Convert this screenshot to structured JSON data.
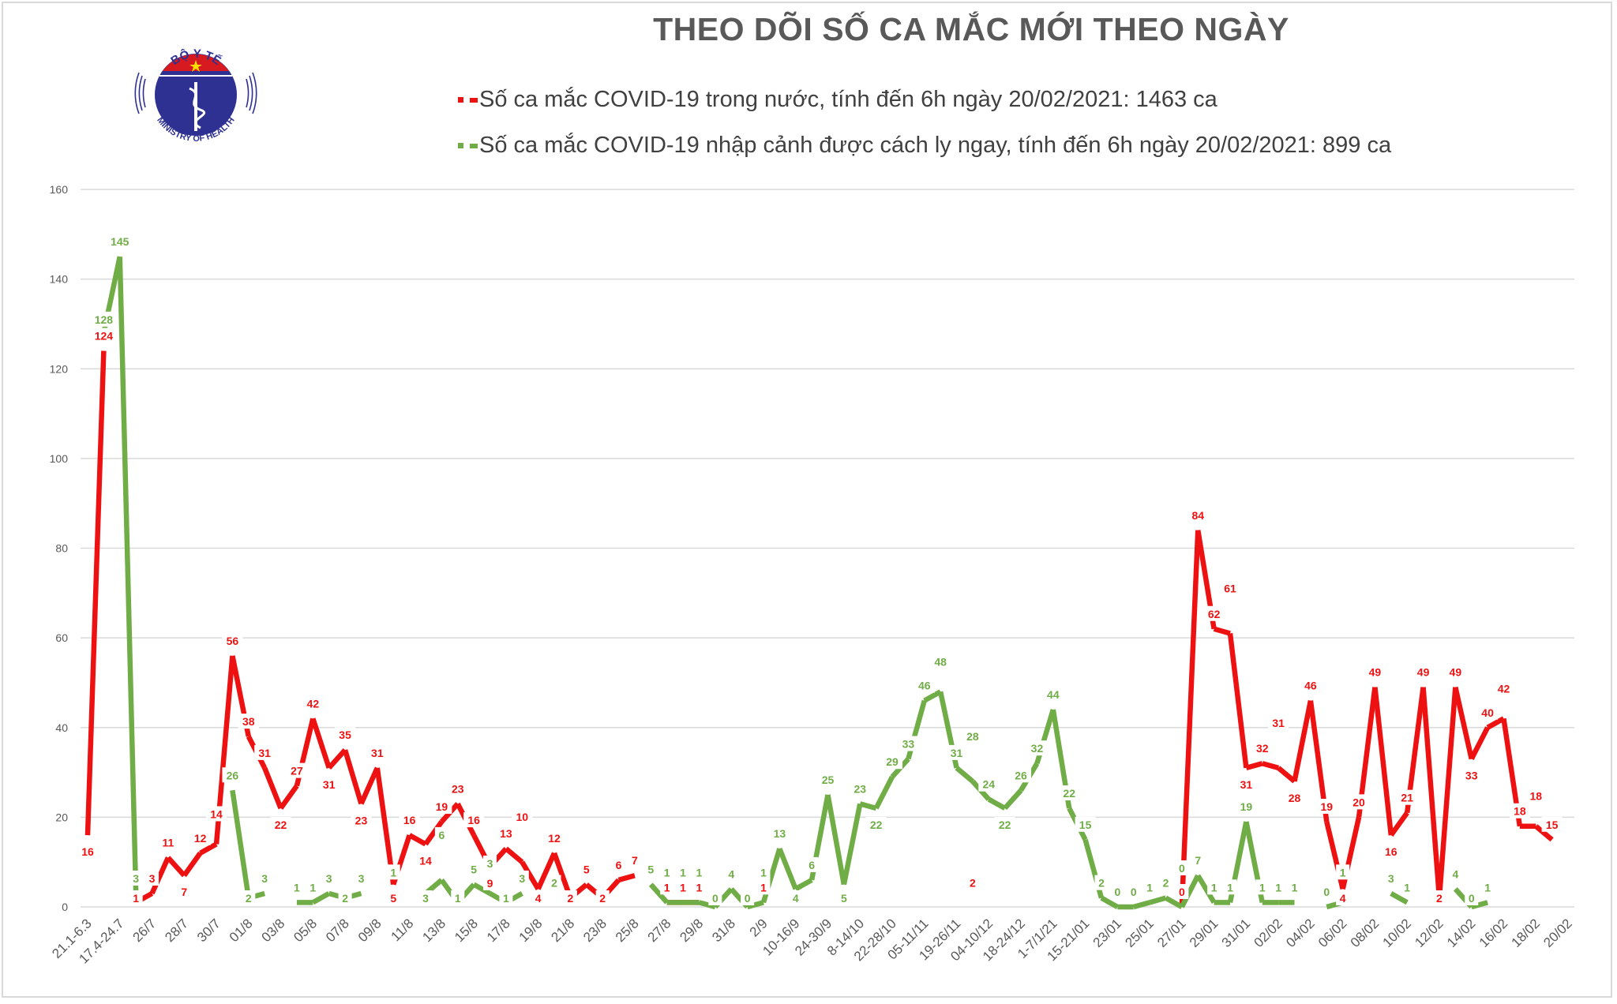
{
  "logo": {
    "top_text": "BỘ Y TẾ",
    "bottom_text": "MINISTRY OF HEALTH"
  },
  "colors": {
    "domestic": "#ee1111",
    "imported": "#70ad47",
    "grid": "#d9d9d9",
    "text": "#595959"
  },
  "chart_data": {
    "type": "line",
    "title": "THEO DÕI SỐ CA MẮC MỚI THEO NGÀY",
    "legend_position": "top",
    "grid": true,
    "ylim": [
      0,
      160
    ],
    "yticks": [
      0,
      20,
      40,
      60,
      80,
      100,
      120,
      140,
      160
    ],
    "categories": [
      "21.1-6.3",
      "",
      "17.4-24.7",
      "",
      "26/7",
      "",
      "28/7",
      "",
      "30/7",
      "",
      "01/8",
      "",
      "03/8",
      "",
      "05/8",
      "",
      "07/8",
      "",
      "09/8",
      "",
      "11/8",
      "",
      "13/8",
      "",
      "15/8",
      "",
      "17/8",
      "",
      "19/8",
      "",
      "21/8",
      "",
      "23/8",
      "",
      "25/8",
      "",
      "27/8",
      "",
      "29/8",
      "",
      "31/8",
      "",
      "2/9",
      "",
      "10-16/9",
      "",
      "24-30/9",
      "",
      "8-14/10",
      "",
      "22-28/10",
      "",
      "05-11/11",
      "",
      "19-26/11",
      "",
      "04-10/12",
      "",
      "18-24/12",
      "",
      "1-7/1/21",
      "",
      "15-21/01",
      "",
      "23/01",
      "",
      "25/01",
      "",
      "27/01",
      "",
      "29/01",
      "",
      "31/01",
      "",
      "02/02",
      "",
      "04/02",
      "",
      "06/02",
      "",
      "08/02",
      "",
      "10/02",
      "",
      "12/02",
      "",
      "14/02",
      "",
      "16/02",
      "",
      "18/02",
      "",
      "20/02"
    ],
    "series": [
      {
        "name": "Số ca mắc COVID-19 trong nước, tính đến 6h ngày 20/02/2021: 1463 ca",
        "color": "#ee1111",
        "values": [
          16,
          124,
          null,
          1,
          3,
          11,
          7,
          12,
          14,
          56,
          38,
          31,
          22,
          27,
          42,
          31,
          35,
          23,
          31,
          5,
          16,
          14,
          19,
          23,
          16,
          9,
          13,
          10,
          4,
          12,
          2,
          5,
          2,
          6,
          7,
          null,
          1,
          1,
          1,
          null,
          null,
          null,
          1,
          null,
          null,
          null,
          null,
          null,
          null,
          null,
          null,
          null,
          null,
          null,
          null,
          2,
          null,
          null,
          null,
          null,
          null,
          null,
          null,
          null,
          null,
          null,
          null,
          null,
          0,
          84,
          62,
          61,
          31,
          32,
          31,
          28,
          46,
          19,
          4,
          20,
          49,
          16,
          21,
          49,
          2,
          49,
          33,
          40,
          42,
          18,
          18,
          15,
          null
        ]
      },
      {
        "name": "Số ca mắc COVID-19 nhập cảnh được cách ly ngay, tính đến 6h ngày 20/02/2021: 899 ca",
        "color": "#70ad47",
        "values": [
          null,
          128,
          145,
          3,
          null,
          null,
          null,
          null,
          null,
          26,
          2,
          3,
          null,
          1,
          1,
          3,
          2,
          3,
          null,
          1,
          null,
          3,
          6,
          1,
          5,
          3,
          1,
          3,
          null,
          2,
          null,
          null,
          null,
          null,
          null,
          5,
          1,
          1,
          1,
          0,
          4,
          0,
          1,
          13,
          4,
          6,
          25,
          5,
          23,
          22,
          29,
          33,
          46,
          48,
          31,
          28,
          24,
          22,
          26,
          32,
          44,
          22,
          15,
          2,
          0,
          0,
          1,
          2,
          0,
          7,
          1,
          1,
          19,
          1,
          1,
          1,
          null,
          0,
          1,
          null,
          null,
          3,
          1,
          null,
          null,
          4,
          0,
          1,
          null,
          null,
          null,
          null,
          null
        ]
      }
    ]
  }
}
